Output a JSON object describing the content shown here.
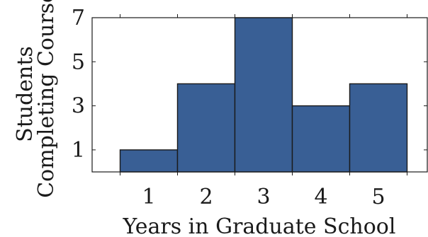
{
  "chart_data": {
    "type": "bar",
    "categories": [
      "1",
      "2",
      "3",
      "4",
      "5"
    ],
    "values": [
      1,
      4,
      7,
      3,
      4
    ],
    "xlabel": "Years in Graduate School",
    "ylabel_lines": [
      "Students",
      "Completing Course"
    ],
    "yticks": [
      1,
      3,
      5,
      7
    ],
    "ylim": [
      0,
      7
    ],
    "grid": false,
    "legend": "none",
    "bar_color": "#395f95"
  }
}
